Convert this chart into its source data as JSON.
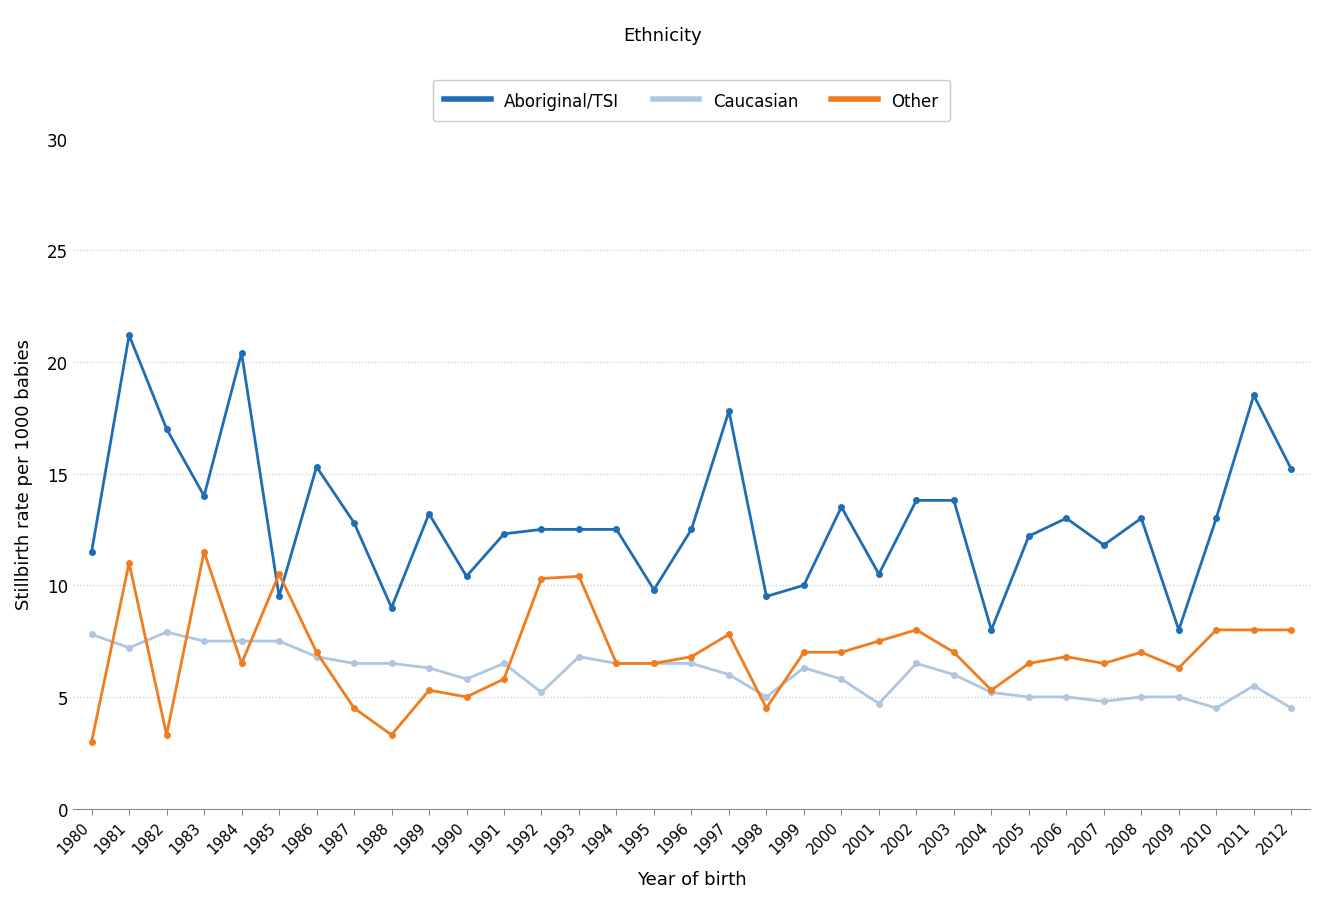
{
  "years": [
    1980,
    1981,
    1982,
    1983,
    1984,
    1985,
    1986,
    1987,
    1988,
    1989,
    1990,
    1991,
    1992,
    1993,
    1994,
    1995,
    1996,
    1997,
    1998,
    1999,
    2000,
    2001,
    2002,
    2003,
    2004,
    2005,
    2006,
    2007,
    2008,
    2009,
    2010,
    2011,
    2012
  ],
  "aboriginal": [
    11.5,
    21.2,
    17.0,
    14.0,
    20.4,
    9.5,
    15.3,
    12.8,
    9.0,
    13.2,
    10.4,
    12.3,
    12.5,
    12.5,
    12.5,
    9.8,
    12.5,
    17.8,
    9.5,
    10.0,
    13.5,
    10.5,
    13.8,
    13.8,
    8.0,
    12.2,
    13.0,
    11.8,
    13.0,
    8.0,
    13.0,
    18.5,
    15.2
  ],
  "caucasian": [
    7.8,
    7.2,
    7.9,
    7.5,
    7.5,
    7.5,
    6.8,
    6.5,
    6.5,
    6.3,
    5.8,
    6.5,
    5.2,
    6.8,
    6.5,
    6.5,
    6.5,
    6.0,
    5.0,
    6.3,
    5.8,
    4.7,
    6.5,
    6.0,
    5.2,
    5.0,
    5.0,
    4.8,
    5.0,
    5.0,
    4.5,
    5.5,
    4.5
  ],
  "other": [
    3.0,
    11.0,
    3.3,
    11.5,
    6.5,
    10.5,
    7.0,
    4.5,
    3.3,
    5.3,
    5.0,
    5.8,
    10.3,
    10.4,
    6.5,
    6.5,
    6.8,
    7.8,
    4.5,
    7.0,
    7.0,
    7.5,
    8.0,
    7.0,
    5.3,
    6.5,
    6.8,
    6.5,
    7.0,
    6.3,
    8.0,
    8.0,
    8.0
  ],
  "aboriginal_color": "#1f6eb5",
  "caucasian_color": "#aec6e0",
  "other_color": "#f07c1e",
  "title": "Ethnicity",
  "xlabel": "Year of birth",
  "ylabel": "Stillbirth rate per 1000 babies",
  "ylim": [
    0,
    30
  ],
  "yticks": [
    0,
    5,
    10,
    15,
    20,
    25,
    30
  ],
  "grid_yticks": [
    5,
    10,
    15,
    20,
    25
  ],
  "legend_labels": [
    "Aboriginal/TSI",
    "Caucasian",
    "Other"
  ],
  "linewidth": 2.0,
  "marker": "o",
  "markersize": 4.0,
  "grid_color": "#c0c8d8",
  "grid_linestyle": ":",
  "grid_alpha": 0.9,
  "background_color": "#ffffff"
}
